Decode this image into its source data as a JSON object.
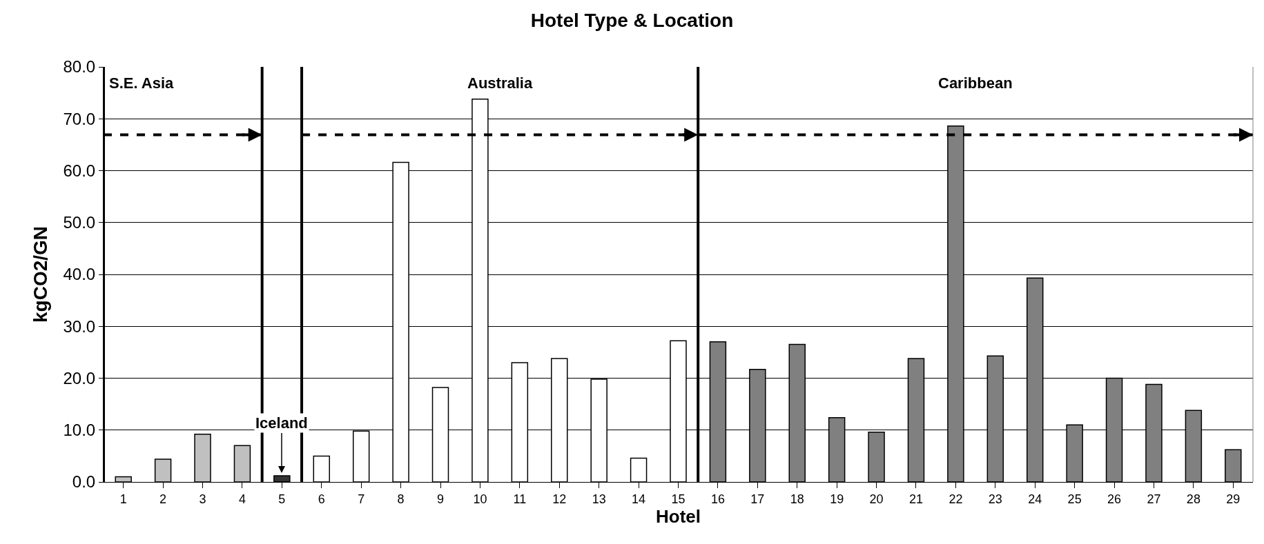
{
  "chart_data": {
    "type": "bar",
    "title": "Hotel Type & Location",
    "xlabel": "Hotel",
    "ylabel": "kgCO2/GN",
    "x": [
      1,
      2,
      3,
      4,
      5,
      6,
      7,
      8,
      9,
      10,
      11,
      12,
      13,
      14,
      15,
      16,
      17,
      18,
      19,
      20,
      21,
      22,
      23,
      24,
      25,
      26,
      27,
      28,
      29
    ],
    "values": [
      1.0,
      4.4,
      9.2,
      7.0,
      1.2,
      5.0,
      9.8,
      61.6,
      18.2,
      73.8,
      23.0,
      23.8,
      19.8,
      4.6,
      27.2,
      27.0,
      21.7,
      26.5,
      12.4,
      9.6,
      23.8,
      68.6,
      24.3,
      39.3,
      11.0,
      20.0,
      18.8,
      13.8,
      6.2
    ],
    "colors": [
      "#c0c0c0",
      "#c0c0c0",
      "#c0c0c0",
      "#c0c0c0",
      "#333333",
      "#ffffff",
      "#ffffff",
      "#ffffff",
      "#ffffff",
      "#ffffff",
      "#ffffff",
      "#ffffff",
      "#ffffff",
      "#ffffff",
      "#ffffff",
      "#808080",
      "#808080",
      "#808080",
      "#808080",
      "#808080",
      "#808080",
      "#808080",
      "#808080",
      "#808080",
      "#808080",
      "#808080",
      "#808080",
      "#808080",
      "#808080"
    ],
    "xlim": [
      0.5,
      29.5
    ],
    "xticks": [
      1,
      2,
      3,
      4,
      5,
      6,
      7,
      8,
      9,
      10,
      11,
      12,
      13,
      14,
      15,
      16,
      17,
      18,
      19,
      20,
      21,
      22,
      23,
      24,
      25,
      26,
      27,
      28,
      29
    ],
    "ylim": [
      0,
      80
    ],
    "yticks": [
      {
        "value": 0,
        "label": "0.0"
      },
      {
        "value": 10,
        "label": "10.0"
      },
      {
        "value": 20,
        "label": "20.0"
      },
      {
        "value": 30,
        "label": "30.0"
      },
      {
        "value": 40,
        "label": "40.0"
      },
      {
        "value": 50,
        "label": "50.0"
      },
      {
        "value": 60,
        "label": "60.0"
      },
      {
        "value": 70,
        "label": "70.0"
      },
      {
        "value": 80,
        "label": "80.0"
      }
    ],
    "grid": "y",
    "ref_lines": [
      {
        "axis": "x",
        "value": 0.5,
        "color": "#000000",
        "line_style": "solid"
      },
      {
        "axis": "x",
        "value": 4.5,
        "color": "#000000",
        "line_style": "solid"
      },
      {
        "axis": "x",
        "value": 5.5,
        "color": "#000000",
        "line_style": "solid"
      },
      {
        "axis": "x",
        "value": 15.5,
        "color": "#000000",
        "line_style": "solid"
      },
      {
        "axis": "y",
        "value": 66.9,
        "color": "#000000",
        "line_style": "dashed"
      }
    ],
    "annotations": [
      "S.E. Asia",
      "Australia",
      "Caribbean",
      {
        "text": "Iceland",
        "x": 5,
        "y": 1.2
      }
    ]
  }
}
